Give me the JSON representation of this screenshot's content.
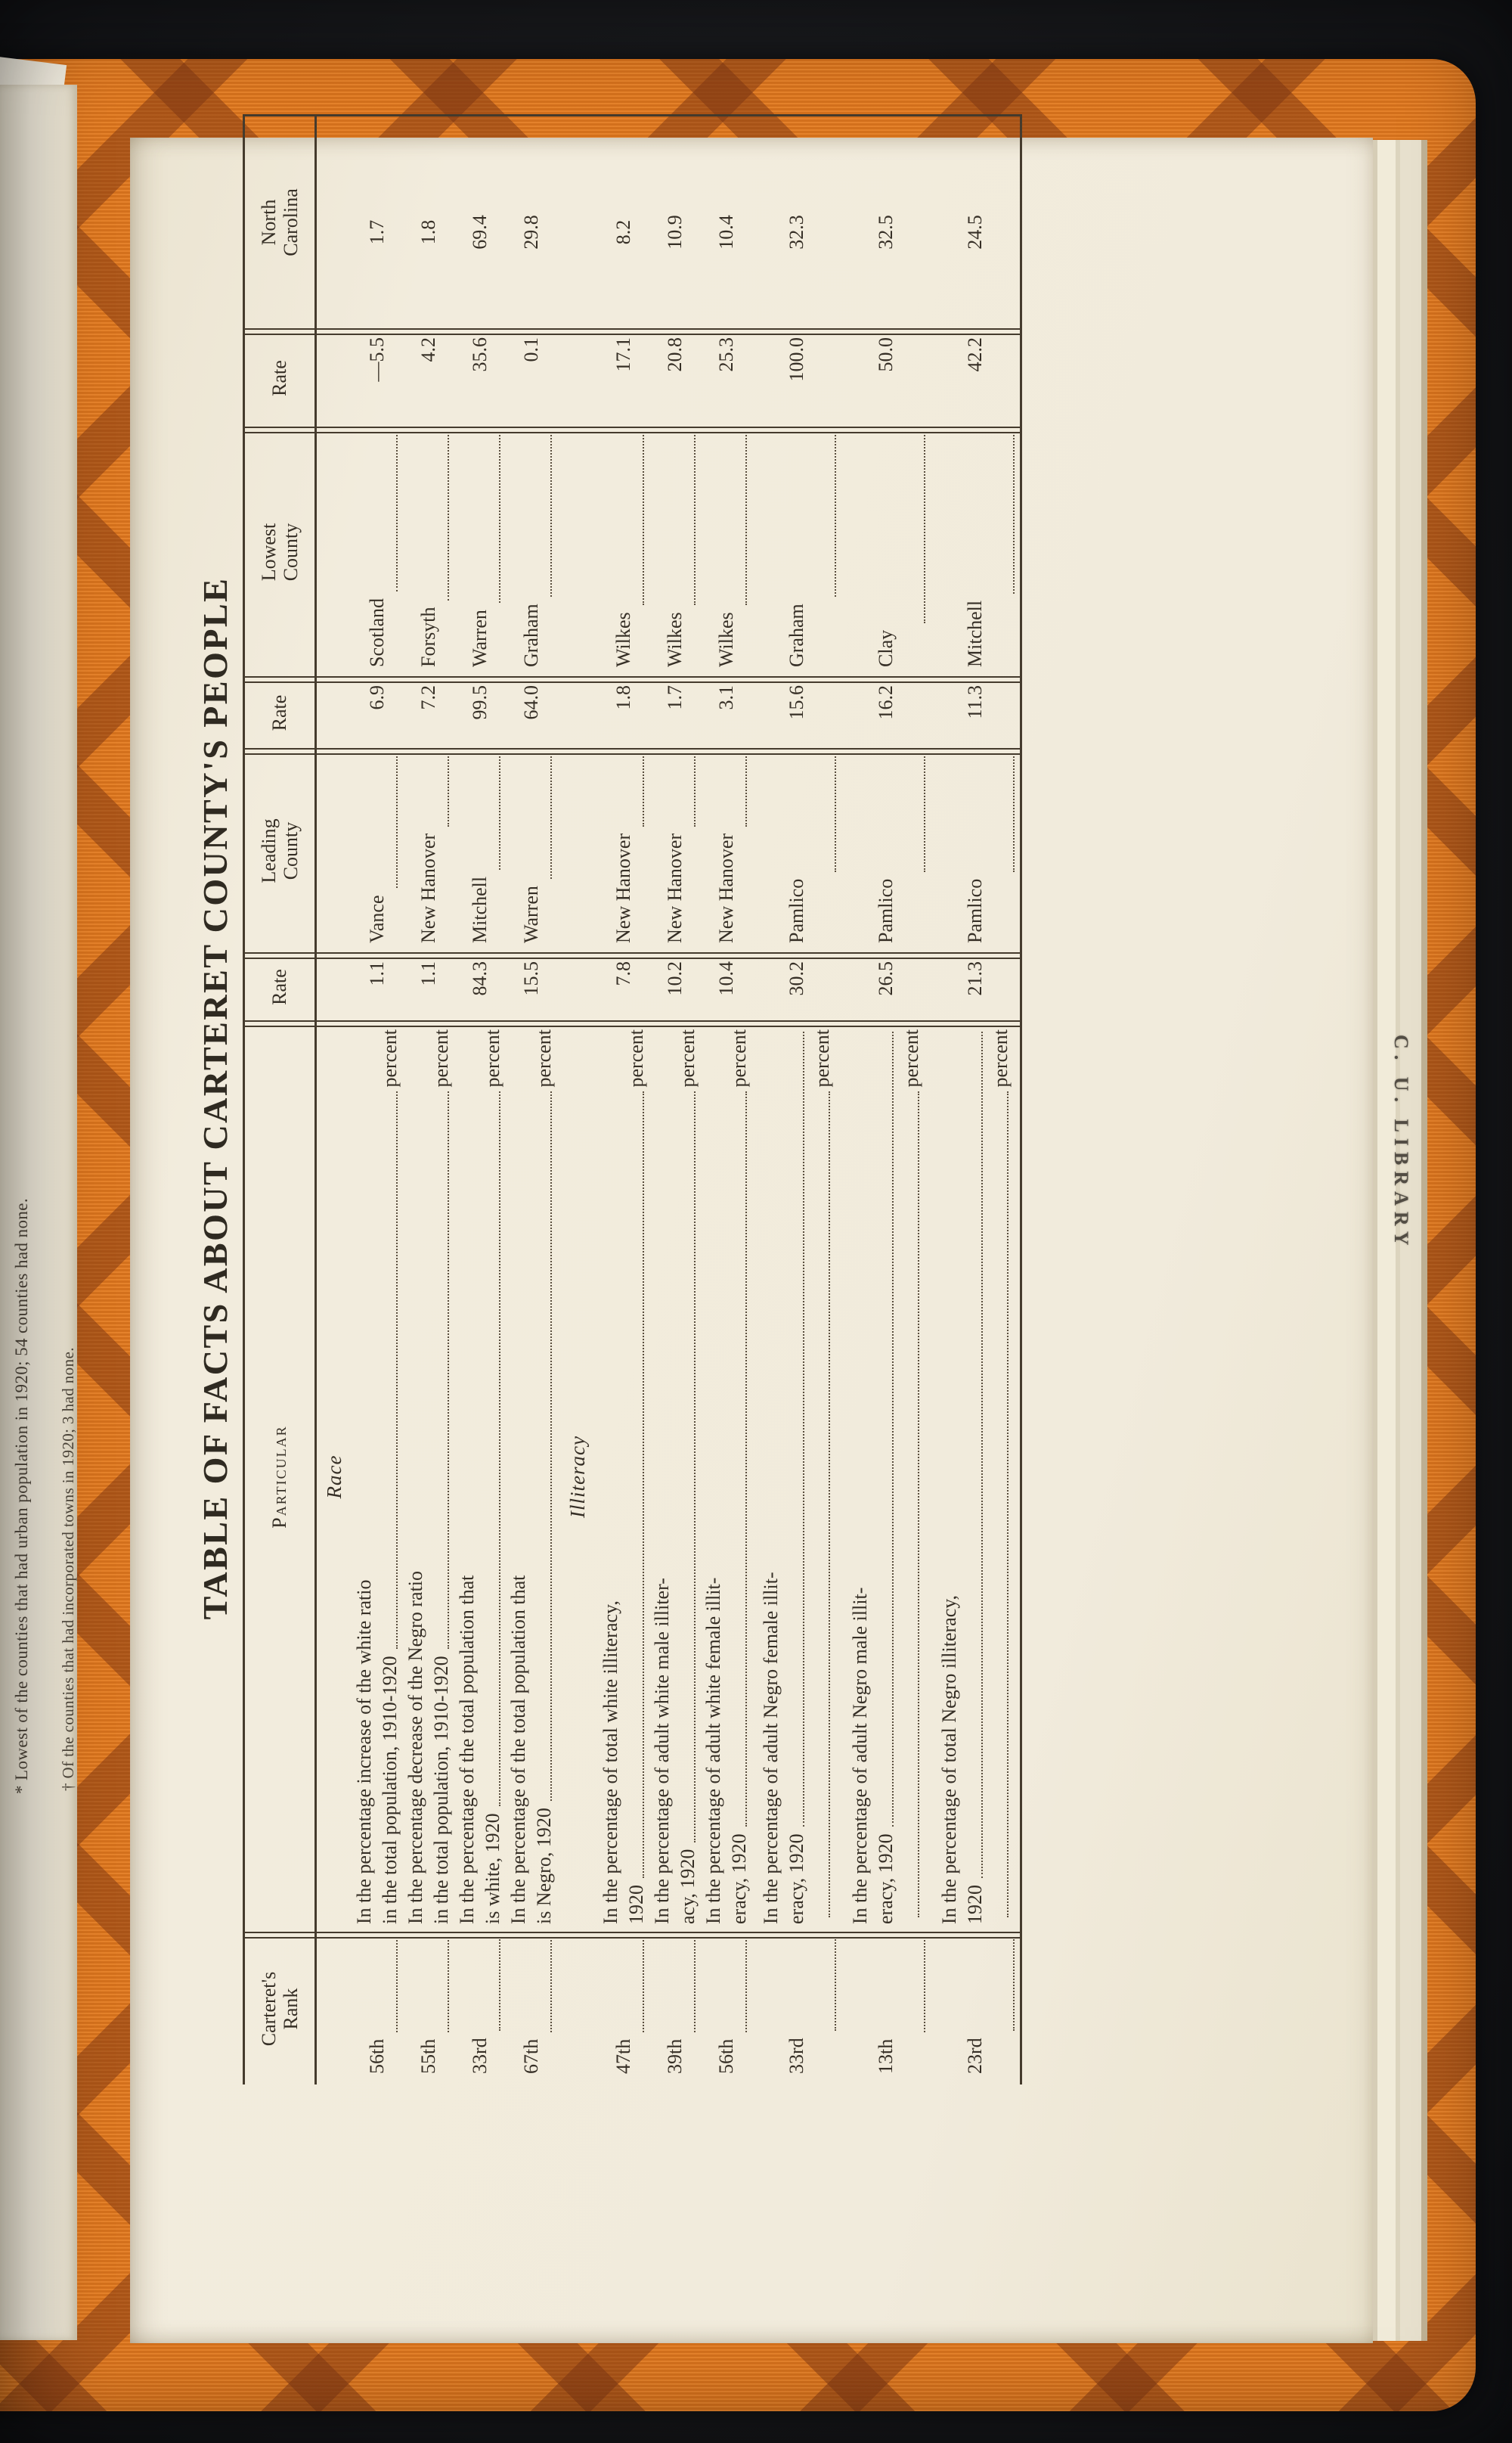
{
  "page": {
    "title": "TABLE OF FACTS ABOUT CARTERET COUNTY'S PEOPLE",
    "stamp": "C. U. LIBRARY",
    "footnotes": [
      "* Lowest of the counties that had urban population in 1920; 54 counties had none.",
      "† Of the counties that had incorporated towns in 1920; 3 had none."
    ],
    "colors": {
      "cover_orange": "#e1781e",
      "cover_pattern_brown": "#7a3412",
      "paper_cream": "#f0ead9",
      "ink": "#362f26",
      "backdrop_black": "#1a1b1e"
    }
  },
  "table": {
    "headers": [
      "Carteret's\nRank",
      "Particular",
      "Rate",
      "Leading\nCounty",
      "Rate",
      "Lowest\nCounty",
      "Rate",
      "North\nCarolina"
    ],
    "percent_label": "percent",
    "rows": [
      {
        "section_before": "Race",
        "rank": "56th",
        "lines": [
          "In the percentage increase of the white ratio",
          "in the total population, 1910-1920"
        ],
        "percent_own_line": false,
        "rate": "1.1",
        "leading": "Vance",
        "leading_rate": "6.9",
        "lowest": "Scotland",
        "lowest_rate": "—5.5",
        "nc": "1.7"
      },
      {
        "rank": "55th",
        "lines": [
          "In the percentage decrease of the Negro ratio",
          "in the total population, 1910-1920"
        ],
        "percent_own_line": false,
        "rate": "1.1",
        "leading": "New Hanover",
        "leading_rate": "7.2",
        "lowest": "Forsyth",
        "lowest_rate": "4.2",
        "nc": "1.8"
      },
      {
        "rank": "33rd",
        "lines": [
          "In the percentage of the total population that",
          "is white, 1920"
        ],
        "percent_own_line": false,
        "rate": "84.3",
        "leading": "Mitchell",
        "leading_rate": "99.5",
        "lowest": "Warren",
        "lowest_rate": "35.6",
        "nc": "69.4"
      },
      {
        "rank": "67th",
        "lines": [
          "In the percentage of the total population that",
          "is Negro, 1920"
        ],
        "percent_own_line": false,
        "rate": "15.5",
        "leading": "Warren",
        "leading_rate": "64.0",
        "lowest": "Graham",
        "lowest_rate": "0.1",
        "nc": "29.8"
      },
      {
        "section_before": "Illiteracy",
        "rank": "47th",
        "lines": [
          "In the percentage of total white illiteracy,",
          "1920"
        ],
        "percent_own_line": false,
        "rate": "7.8",
        "leading": "New Hanover",
        "leading_rate": "1.8",
        "lowest": "Wilkes",
        "lowest_rate": "17.1",
        "nc": "8.2"
      },
      {
        "rank": "39th",
        "lines": [
          "In the percentage of adult white male illiter-",
          "acy, 1920"
        ],
        "percent_own_line": false,
        "rate": "10.2",
        "leading": "New Hanover",
        "leading_rate": "1.7",
        "lowest": "Wilkes",
        "lowest_rate": "20.8",
        "nc": "10.9"
      },
      {
        "rank": "56th",
        "lines": [
          "In the percentage of adult white female illit-",
          "eracy, 1920"
        ],
        "percent_own_line": false,
        "rate": "10.4",
        "leading": "New Hanover",
        "leading_rate": "3.1",
        "lowest": "Wilkes",
        "lowest_rate": "25.3",
        "nc": "10.4"
      },
      {
        "rank": "33rd",
        "lines": [
          "In the percentage of adult Negro female illit-",
          "eracy, 1920"
        ],
        "percent_own_line": true,
        "rate": "30.2",
        "leading": "Pamlico",
        "leading_rate": "15.6",
        "lowest": "Graham",
        "lowest_rate": "100.0",
        "nc": "32.3"
      },
      {
        "rank": "13th",
        "lines": [
          "In the percentage of adult Negro male illit-",
          "eracy, 1920"
        ],
        "percent_own_line": true,
        "rate": "26.5",
        "leading": "Pamlico",
        "leading_rate": "16.2",
        "lowest": "Clay",
        "lowest_rate": "50.0",
        "nc": "32.5"
      },
      {
        "rank": "23rd",
        "lines": [
          "In the percentage of total Negro illiteracy,",
          "1920"
        ],
        "percent_own_line": true,
        "rate": "21.3",
        "leading": "Pamlico",
        "leading_rate": "11.3",
        "lowest": "Mitchell",
        "lowest_rate": "42.2",
        "nc": "24.5"
      }
    ]
  }
}
